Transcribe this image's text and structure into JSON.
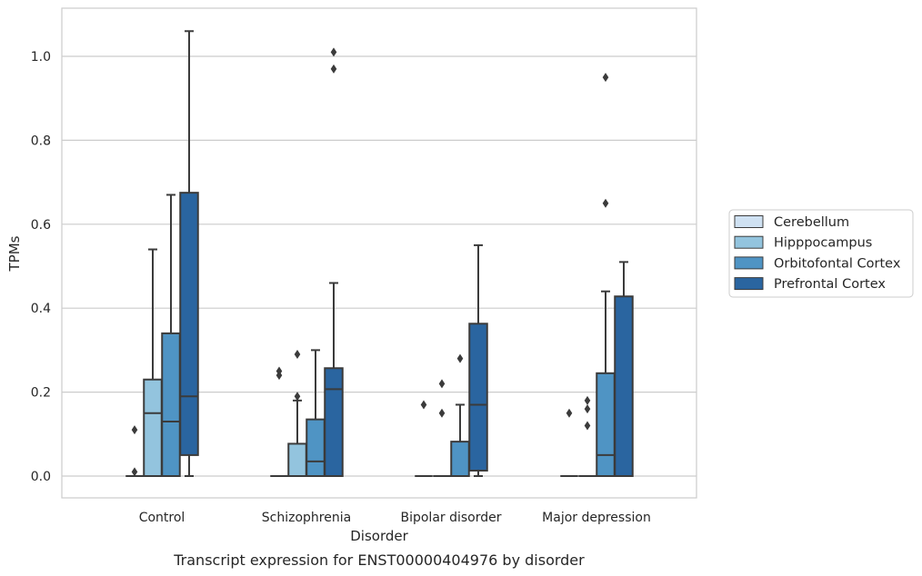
{
  "chart_data": {
    "type": "box",
    "caption": "Transcript expression for ENST00000404976 by disorder",
    "xlabel": "Disorder",
    "ylabel": "TPMs",
    "ylim": [
      -0.05,
      1.12
    ],
    "yticks": [
      "0.0",
      "0.2",
      "0.4",
      "0.6",
      "0.8",
      "1.0"
    ],
    "ytick_values": [
      0,
      0.2,
      0.4,
      0.6,
      0.8,
      1.0
    ],
    "grid": "horizontal",
    "legend_position": "right",
    "categories": [
      "Control",
      "Schizophrenia",
      "Bipolar disorder",
      "Major depression"
    ],
    "series": [
      {
        "name": "Cerebellum",
        "color": "#cfe1f2",
        "boxes": [
          {
            "q1": 0,
            "median": 0,
            "q3": 0,
            "whisker_low": 0,
            "whisker_high": 0,
            "outliers": [
              0.11,
              0.01
            ]
          },
          {
            "q1": 0,
            "median": 0,
            "q3": 0,
            "whisker_low": 0,
            "whisker_high": 0,
            "outliers": [
              0.25,
              0.24
            ]
          },
          {
            "q1": 0,
            "median": 0,
            "q3": 0,
            "whisker_low": 0,
            "whisker_high": 0,
            "outliers": [
              0.17
            ]
          },
          {
            "q1": 0,
            "median": 0,
            "q3": 0,
            "whisker_low": 0,
            "whisker_high": 0,
            "outliers": [
              0.15
            ]
          }
        ]
      },
      {
        "name": "Hipppocampus",
        "color": "#93c4de",
        "boxes": [
          {
            "q1": 0,
            "median": 0.15,
            "q3": 0.23,
            "whisker_low": 0,
            "whisker_high": 0.54,
            "outliers": []
          },
          {
            "q1": 0,
            "median": 0,
            "q3": 0.077,
            "whisker_low": 0,
            "whisker_high": 0.18,
            "outliers": [
              0.29,
              0.19
            ]
          },
          {
            "q1": 0,
            "median": 0,
            "q3": 0,
            "whisker_low": 0,
            "whisker_high": 0,
            "outliers": [
              0.22,
              0.15
            ]
          },
          {
            "q1": 0,
            "median": 0,
            "q3": 0,
            "whisker_low": 0,
            "whisker_high": 0,
            "outliers": [
              0.18,
              0.16,
              0.12
            ]
          }
        ]
      },
      {
        "name": "Orbitofontal Cortex",
        "color": "#4f94c4",
        "boxes": [
          {
            "q1": 0,
            "median": 0.13,
            "q3": 0.34,
            "whisker_low": 0,
            "whisker_high": 0.67,
            "outliers": []
          },
          {
            "q1": 0,
            "median": 0.035,
            "q3": 0.135,
            "whisker_low": 0,
            "whisker_high": 0.3,
            "outliers": []
          },
          {
            "q1": 0,
            "median": 0,
            "q3": 0.082,
            "whisker_low": 0,
            "whisker_high": 0.17,
            "outliers": [
              0.28
            ]
          },
          {
            "q1": 0,
            "median": 0.05,
            "q3": 0.245,
            "whisker_low": 0,
            "whisker_high": 0.44,
            "outliers": [
              0.95,
              0.65
            ]
          }
        ]
      },
      {
        "name": "Prefrontal Cortex",
        "color": "#2a65a0",
        "boxes": [
          {
            "q1": 0.05,
            "median": 0.19,
            "q3": 0.675,
            "whisker_low": 0,
            "whisker_high": 1.06,
            "outliers": []
          },
          {
            "q1": 0,
            "median": 0.207,
            "q3": 0.257,
            "whisker_low": 0,
            "whisker_high": 0.46,
            "outliers": [
              1.01,
              0.97
            ]
          },
          {
            "q1": 0.013,
            "median": 0.17,
            "q3": 0.363,
            "whisker_low": 0,
            "whisker_high": 0.55,
            "outliers": []
          },
          {
            "q1": 0,
            "median": 0,
            "q3": 0.428,
            "whisker_low": 0,
            "whisker_high": 0.51,
            "outliers": []
          }
        ]
      }
    ]
  }
}
